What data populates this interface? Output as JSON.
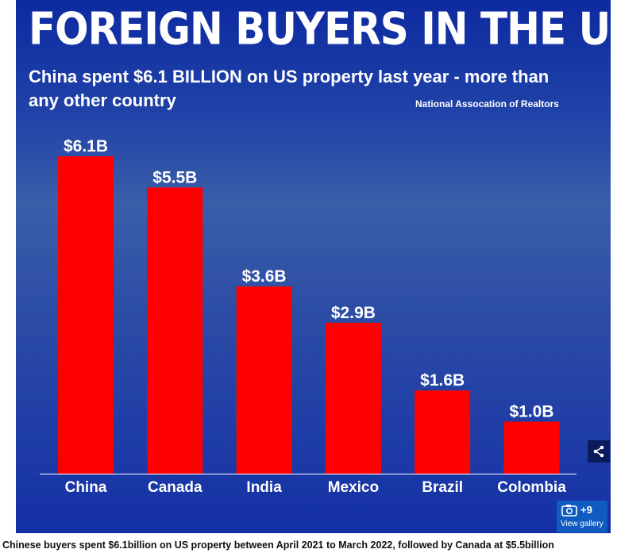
{
  "title": "FOREIGN BUYERS IN THE US",
  "subtitle": "China spent $6.1 BILLION on US property last year - more than any other country",
  "source": "National Assocation of Realtors",
  "caption": "Chinese buyers spent $6.1billion on US property between April 2021 to March 2022, followed by Canada at $5.5billion",
  "gallery": {
    "count": "+9",
    "label": "View gallery"
  },
  "icons": {
    "share": "share-icon",
    "camera": "camera-icon"
  },
  "chart_data": {
    "type": "bar",
    "title": "FOREIGN BUYERS IN THE US",
    "categories": [
      "China",
      "Canada",
      "India",
      "Mexico",
      "Brazil",
      "Colombia"
    ],
    "values": [
      6.1,
      5.5,
      3.6,
      2.9,
      1.6,
      1.0
    ],
    "data_labels": [
      "$6.1B",
      "$5.5B",
      "$3.6B",
      "$2.9B",
      "$1.6B",
      "$1.0B"
    ],
    "unit": "$ billion",
    "ylim": [
      0,
      6.1
    ],
    "grid": false,
    "bar_color": "#ff0000"
  }
}
